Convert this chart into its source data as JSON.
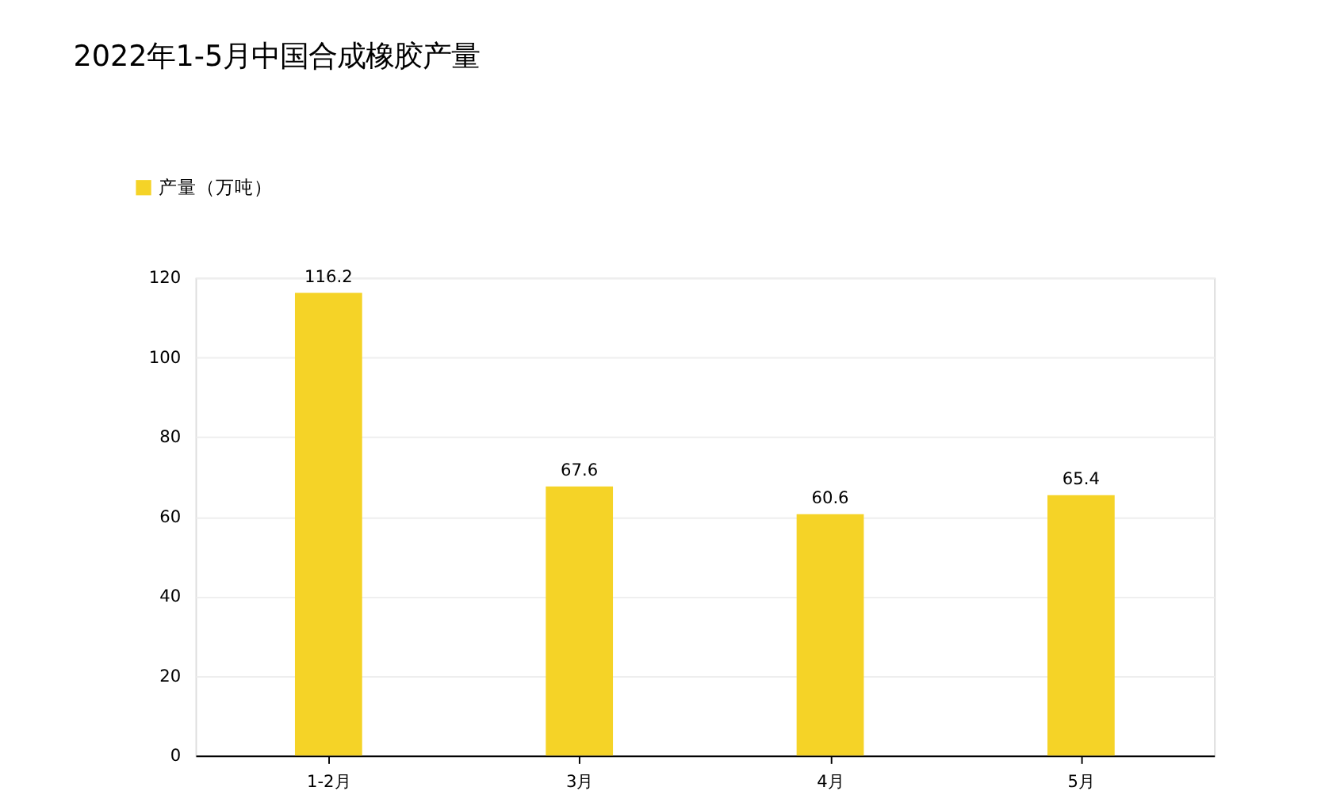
{
  "chart_data": {
    "type": "bar",
    "title": "2022年1-5月中国合成橡胶产量",
    "categories": [
      "1-2月",
      "3月",
      "4月",
      "5月"
    ],
    "series": [
      {
        "name": "产量（万吨）",
        "color": "#f5d327",
        "values": [
          116.2,
          67.6,
          60.6,
          65.4
        ]
      }
    ],
    "ylim": [
      0,
      120
    ],
    "yticks": [
      0,
      20,
      40,
      60,
      80,
      100,
      120
    ],
    "grid": "y",
    "legend": "top left",
    "data_labels": true
  }
}
